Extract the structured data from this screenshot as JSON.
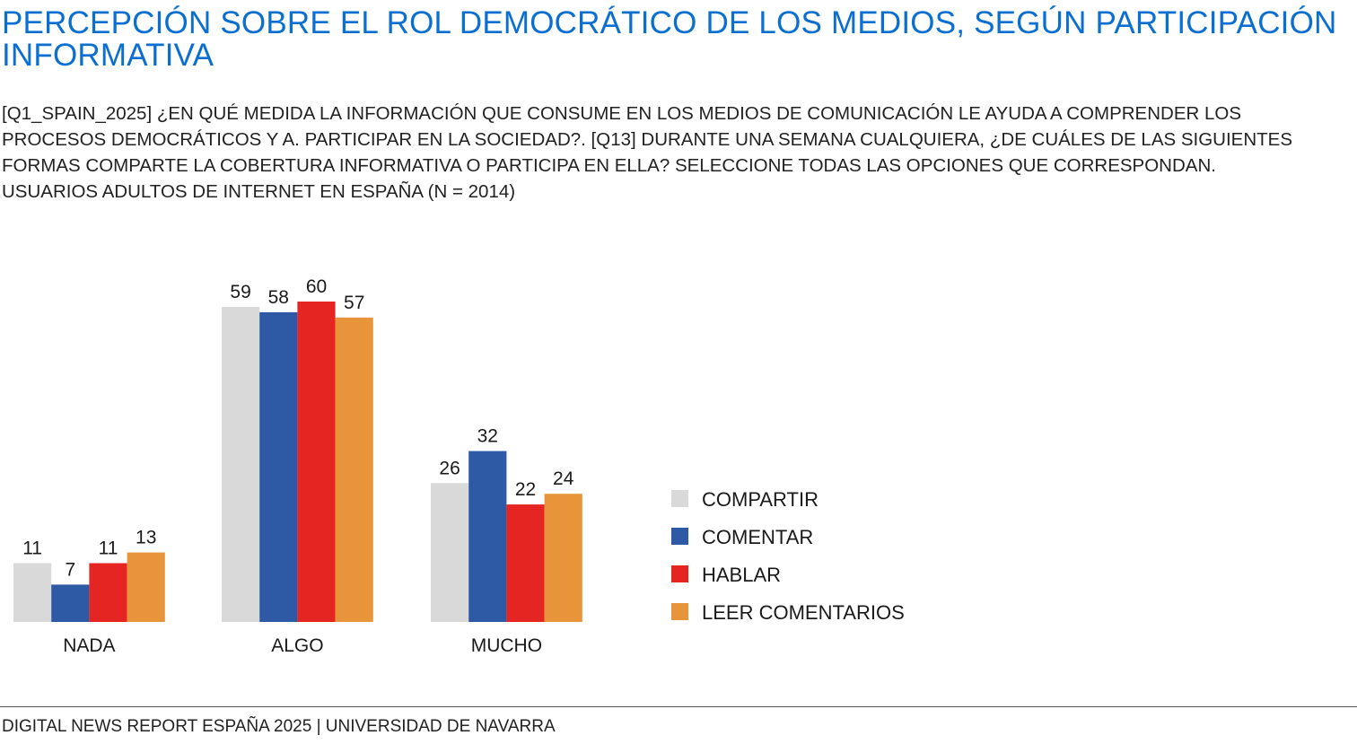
{
  "header": {
    "title": "PERCEPCIÓN SOBRE EL ROL DEMOCRÁTICO DE LOS MEDIOS, SEGÚN PARTICIPACIÓN INFORMATIVA",
    "question": "[Q1_SPAIN_2025] ¿EN QUÉ MEDIDA LA INFORMACIÓN QUE CONSUME EN LOS MEDIOS DE COMUNICACIÓN LE AYUDA A COMPRENDER LOS PROCESOS DEMOCRÁTICOS Y A. PARTICIPAR EN LA SOCIEDAD?. [Q13] DURANTE UNA SEMANA CUALQUIERA, ¿DE CUÁLES DE LAS SIGUIENTES FORMAS COMPARTE LA COBERTURA INFORMATIVA O PARTICIPA EN ELLA? SELECCIONE TODAS LAS OPCIONES QUE CORRESPONDAN.",
    "base": "USUARIOS ADULTOS DE INTERNET EN ESPAÑA (N = 2014)"
  },
  "chart_data": {
    "type": "bar",
    "title": "PERCEPCIÓN SOBRE EL ROL DEMOCRÁTICO DE LOS MEDIOS, SEGÚN PARTICIPACIÓN INFORMATIVA",
    "categories": [
      "NADA",
      "ALGO",
      "MUCHO"
    ],
    "series": [
      {
        "name": "COMPARTIR",
        "color": "#d9d9d9",
        "values": [
          11,
          59,
          26
        ]
      },
      {
        "name": "COMENTAR",
        "color": "#2e59a5",
        "values": [
          7,
          58,
          32
        ]
      },
      {
        "name": "HABLAR",
        "color": "#e52521",
        "values": [
          11,
          60,
          22
        ]
      },
      {
        "name": "LEER COMENTARIOS",
        "color": "#e8943a",
        "values": [
          13,
          57,
          24
        ]
      }
    ],
    "xlabel": "",
    "ylabel": "",
    "ylim": [
      0,
      60
    ],
    "grid": false,
    "data_labels": true,
    "legend_position": "right"
  },
  "footer": {
    "text": "DIGITAL NEWS REPORT ESPAÑA 2025 | UNIVERSIDAD DE NAVARRA"
  }
}
